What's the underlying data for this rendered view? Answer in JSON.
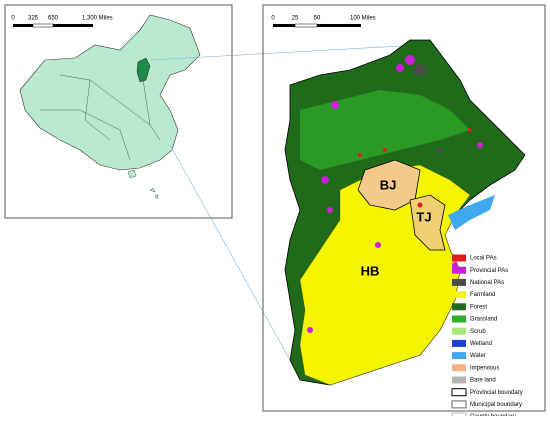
{
  "inset_map": {
    "scale_labels": [
      "0",
      "325",
      "650",
      "1,300 Miles"
    ]
  },
  "main_map": {
    "scale_labels": [
      "0",
      "25",
      "50",
      "100 Miles"
    ],
    "regions": [
      "BJ",
      "TJ",
      "HB"
    ]
  },
  "legend": [
    {
      "label": "Local PAs",
      "color": "#e31a1c",
      "style": "fill"
    },
    {
      "label": "Provincial PAs",
      "color": "#cc1fd8",
      "style": "fill"
    },
    {
      "label": "National PAs",
      "color": "#4d4d4d",
      "style": "fill"
    },
    {
      "label": "Farmland",
      "color": "#f5f500",
      "style": "fill"
    },
    {
      "label": "Forest",
      "color": "#1f6b1a",
      "style": "fill"
    },
    {
      "label": "Grassland",
      "color": "#2fae2a",
      "style": "fill"
    },
    {
      "label": "Scrub",
      "color": "#a8e87a",
      "style": "fill"
    },
    {
      "label": "Wetland",
      "color": "#1f3fd0",
      "style": "fill"
    },
    {
      "label": "Water",
      "color": "#40a8ee",
      "style": "fill"
    },
    {
      "label": "Impervious",
      "color": "#f4b08a",
      "style": "fill"
    },
    {
      "label": "Bare land",
      "color": "#b3b3b3",
      "style": "fill"
    },
    {
      "label": "Provincial boundary",
      "color": "#000000",
      "style": "outline"
    },
    {
      "label": "Municipal boundary",
      "color": "#666666",
      "style": "outline"
    },
    {
      "label": "County boundary",
      "color": "#bbbbbb",
      "style": "outline"
    }
  ]
}
